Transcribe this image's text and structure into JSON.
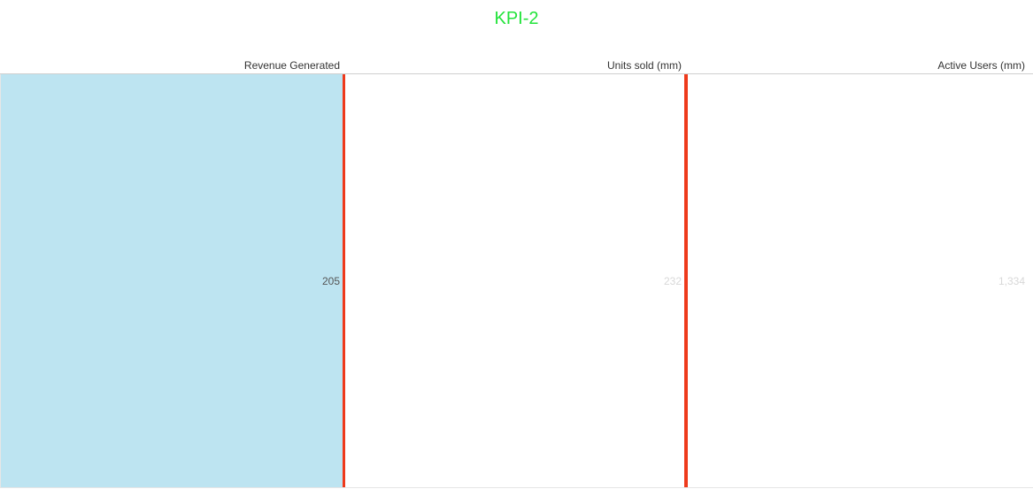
{
  "chart_data": {
    "type": "bar",
    "title": "KPI-2",
    "categories": [
      "Revenue Generated",
      "Units sold (mm)",
      "Active Users (mm)"
    ],
    "values": [
      205,
      232,
      1334
    ],
    "value_labels": [
      "205",
      "232",
      "1,334"
    ],
    "reference_values": [
      205,
      232,
      null
    ],
    "colors": {
      "title": "#22e33a",
      "bar": "#bde4f1",
      "reference_line": "#ee3a1c",
      "label_primary": "#555555",
      "label_muted": "#d8d8d8"
    }
  }
}
